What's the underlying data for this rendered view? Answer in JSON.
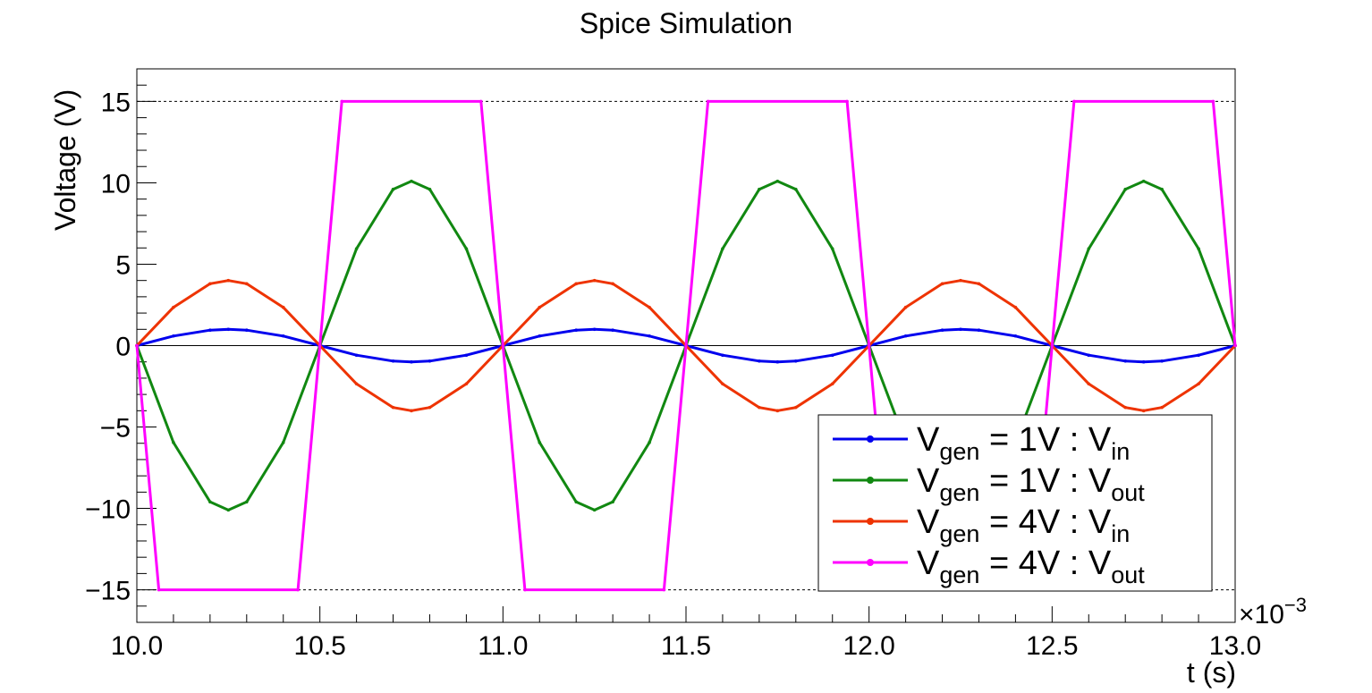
{
  "chart_data": {
    "type": "line",
    "title": "Spice Simulation",
    "xlabel": "t (s)",
    "ylabel": "Voltage (V)",
    "x_multiplier": "×10",
    "x_multiplier_exponent": "−3",
    "xlim": [
      10.0,
      13.0
    ],
    "ylim": [
      -17,
      17
    ],
    "x_tick_labels": [
      "10.0",
      "10.5",
      "11.0",
      "11.5",
      "12.0",
      "12.5",
      "13.0"
    ],
    "y_tick_labels": [
      "−15",
      "−10",
      "−5",
      "0",
      "5",
      "10",
      "15"
    ],
    "reference_lines": [
      15,
      -15,
      0
    ],
    "legend_position": "bottom-right",
    "series": [
      {
        "color": "#0000ee",
        "x": [
          10.0,
          10.1,
          10.2,
          10.25,
          10.3,
          10.4,
          10.5,
          10.6,
          10.7,
          10.75,
          10.8,
          10.9,
          11.0,
          11.1,
          11.2,
          11.25,
          11.3,
          11.4,
          11.5,
          11.6,
          11.7,
          11.75,
          11.8,
          11.9,
          12.0,
          12.1,
          12.2,
          12.25,
          12.3,
          12.4,
          12.5,
          12.6,
          12.7,
          12.75,
          12.8,
          12.9,
          13.0
        ],
        "values": [
          0,
          0.59,
          0.95,
          1.0,
          0.95,
          0.59,
          0,
          -0.59,
          -0.95,
          -1.0,
          -0.95,
          -0.59,
          0,
          0.59,
          0.95,
          1.0,
          0.95,
          0.59,
          0,
          -0.59,
          -0.95,
          -1.0,
          -0.95,
          -0.59,
          0,
          0.59,
          0.95,
          1.0,
          0.95,
          0.59,
          0,
          -0.59,
          -0.95,
          -1.0,
          -0.95,
          -0.59,
          0
        ]
      },
      {
        "color": "#118811",
        "x": [
          10.0,
          10.1,
          10.2,
          10.25,
          10.3,
          10.4,
          10.5,
          10.6,
          10.7,
          10.75,
          10.8,
          10.9,
          11.0,
          11.1,
          11.2,
          11.25,
          11.3,
          11.4,
          11.5,
          11.6,
          11.7,
          11.75,
          11.8,
          11.9,
          12.0,
          12.1,
          12.2,
          12.25,
          12.3,
          12.4,
          12.5,
          12.6,
          12.7,
          12.75,
          12.8,
          12.9,
          13.0
        ],
        "values": [
          0,
          -5.95,
          -9.6,
          -10.1,
          -9.6,
          -5.95,
          0,
          5.95,
          9.6,
          10.1,
          9.6,
          5.95,
          0,
          -5.95,
          -9.6,
          -10.1,
          -9.6,
          -5.95,
          0,
          5.95,
          9.6,
          10.1,
          9.6,
          5.95,
          0,
          -5.95,
          -9.6,
          -10.1,
          -9.6,
          -5.95,
          0,
          5.95,
          9.6,
          10.1,
          9.6,
          5.95,
          0
        ]
      },
      {
        "color": "#ee3300",
        "x": [
          10.0,
          10.1,
          10.2,
          10.25,
          10.3,
          10.4,
          10.5,
          10.6,
          10.7,
          10.75,
          10.8,
          10.9,
          11.0,
          11.1,
          11.2,
          11.25,
          11.3,
          11.4,
          11.5,
          11.6,
          11.7,
          11.75,
          11.8,
          11.9,
          12.0,
          12.1,
          12.2,
          12.25,
          12.3,
          12.4,
          12.5,
          12.6,
          12.7,
          12.75,
          12.8,
          12.9,
          13.0
        ],
        "values": [
          0,
          2.35,
          3.8,
          4.0,
          3.8,
          2.35,
          0,
          -2.35,
          -3.8,
          -4.0,
          -3.8,
          -2.35,
          0,
          2.35,
          3.8,
          4.0,
          3.8,
          2.35,
          0,
          -2.35,
          -3.8,
          -4.0,
          -3.8,
          -2.35,
          0,
          2.35,
          3.8,
          4.0,
          3.8,
          2.35,
          0,
          -2.35,
          -3.8,
          -4.0,
          -3.8,
          -2.35,
          0
        ]
      },
      {
        "color": "#ff00ff",
        "x": [
          10.0,
          10.06,
          10.44,
          10.56,
          10.94,
          11.06,
          11.44,
          11.56,
          11.94,
          12.06,
          12.44,
          12.56,
          12.94,
          13.0
        ],
        "values": [
          0,
          -15,
          -15,
          15,
          15,
          -15,
          -15,
          15,
          15,
          -15,
          -15,
          15,
          15,
          0
        ]
      }
    ],
    "legend": [
      {
        "v": "V",
        "sub1": "gen",
        "mid": " = 1V : V",
        "sub2": "in",
        "color": "#0000ee"
      },
      {
        "v": "V",
        "sub1": "gen",
        "mid": " = 1V : V",
        "sub2": "out",
        "color": "#118811"
      },
      {
        "v": "V",
        "sub1": "gen",
        "mid": " = 4V : V",
        "sub2": "in",
        "color": "#ee3300"
      },
      {
        "v": "V",
        "sub1": "gen",
        "mid": " = 4V : V",
        "sub2": "out",
        "color": "#ff00ff"
      }
    ]
  }
}
